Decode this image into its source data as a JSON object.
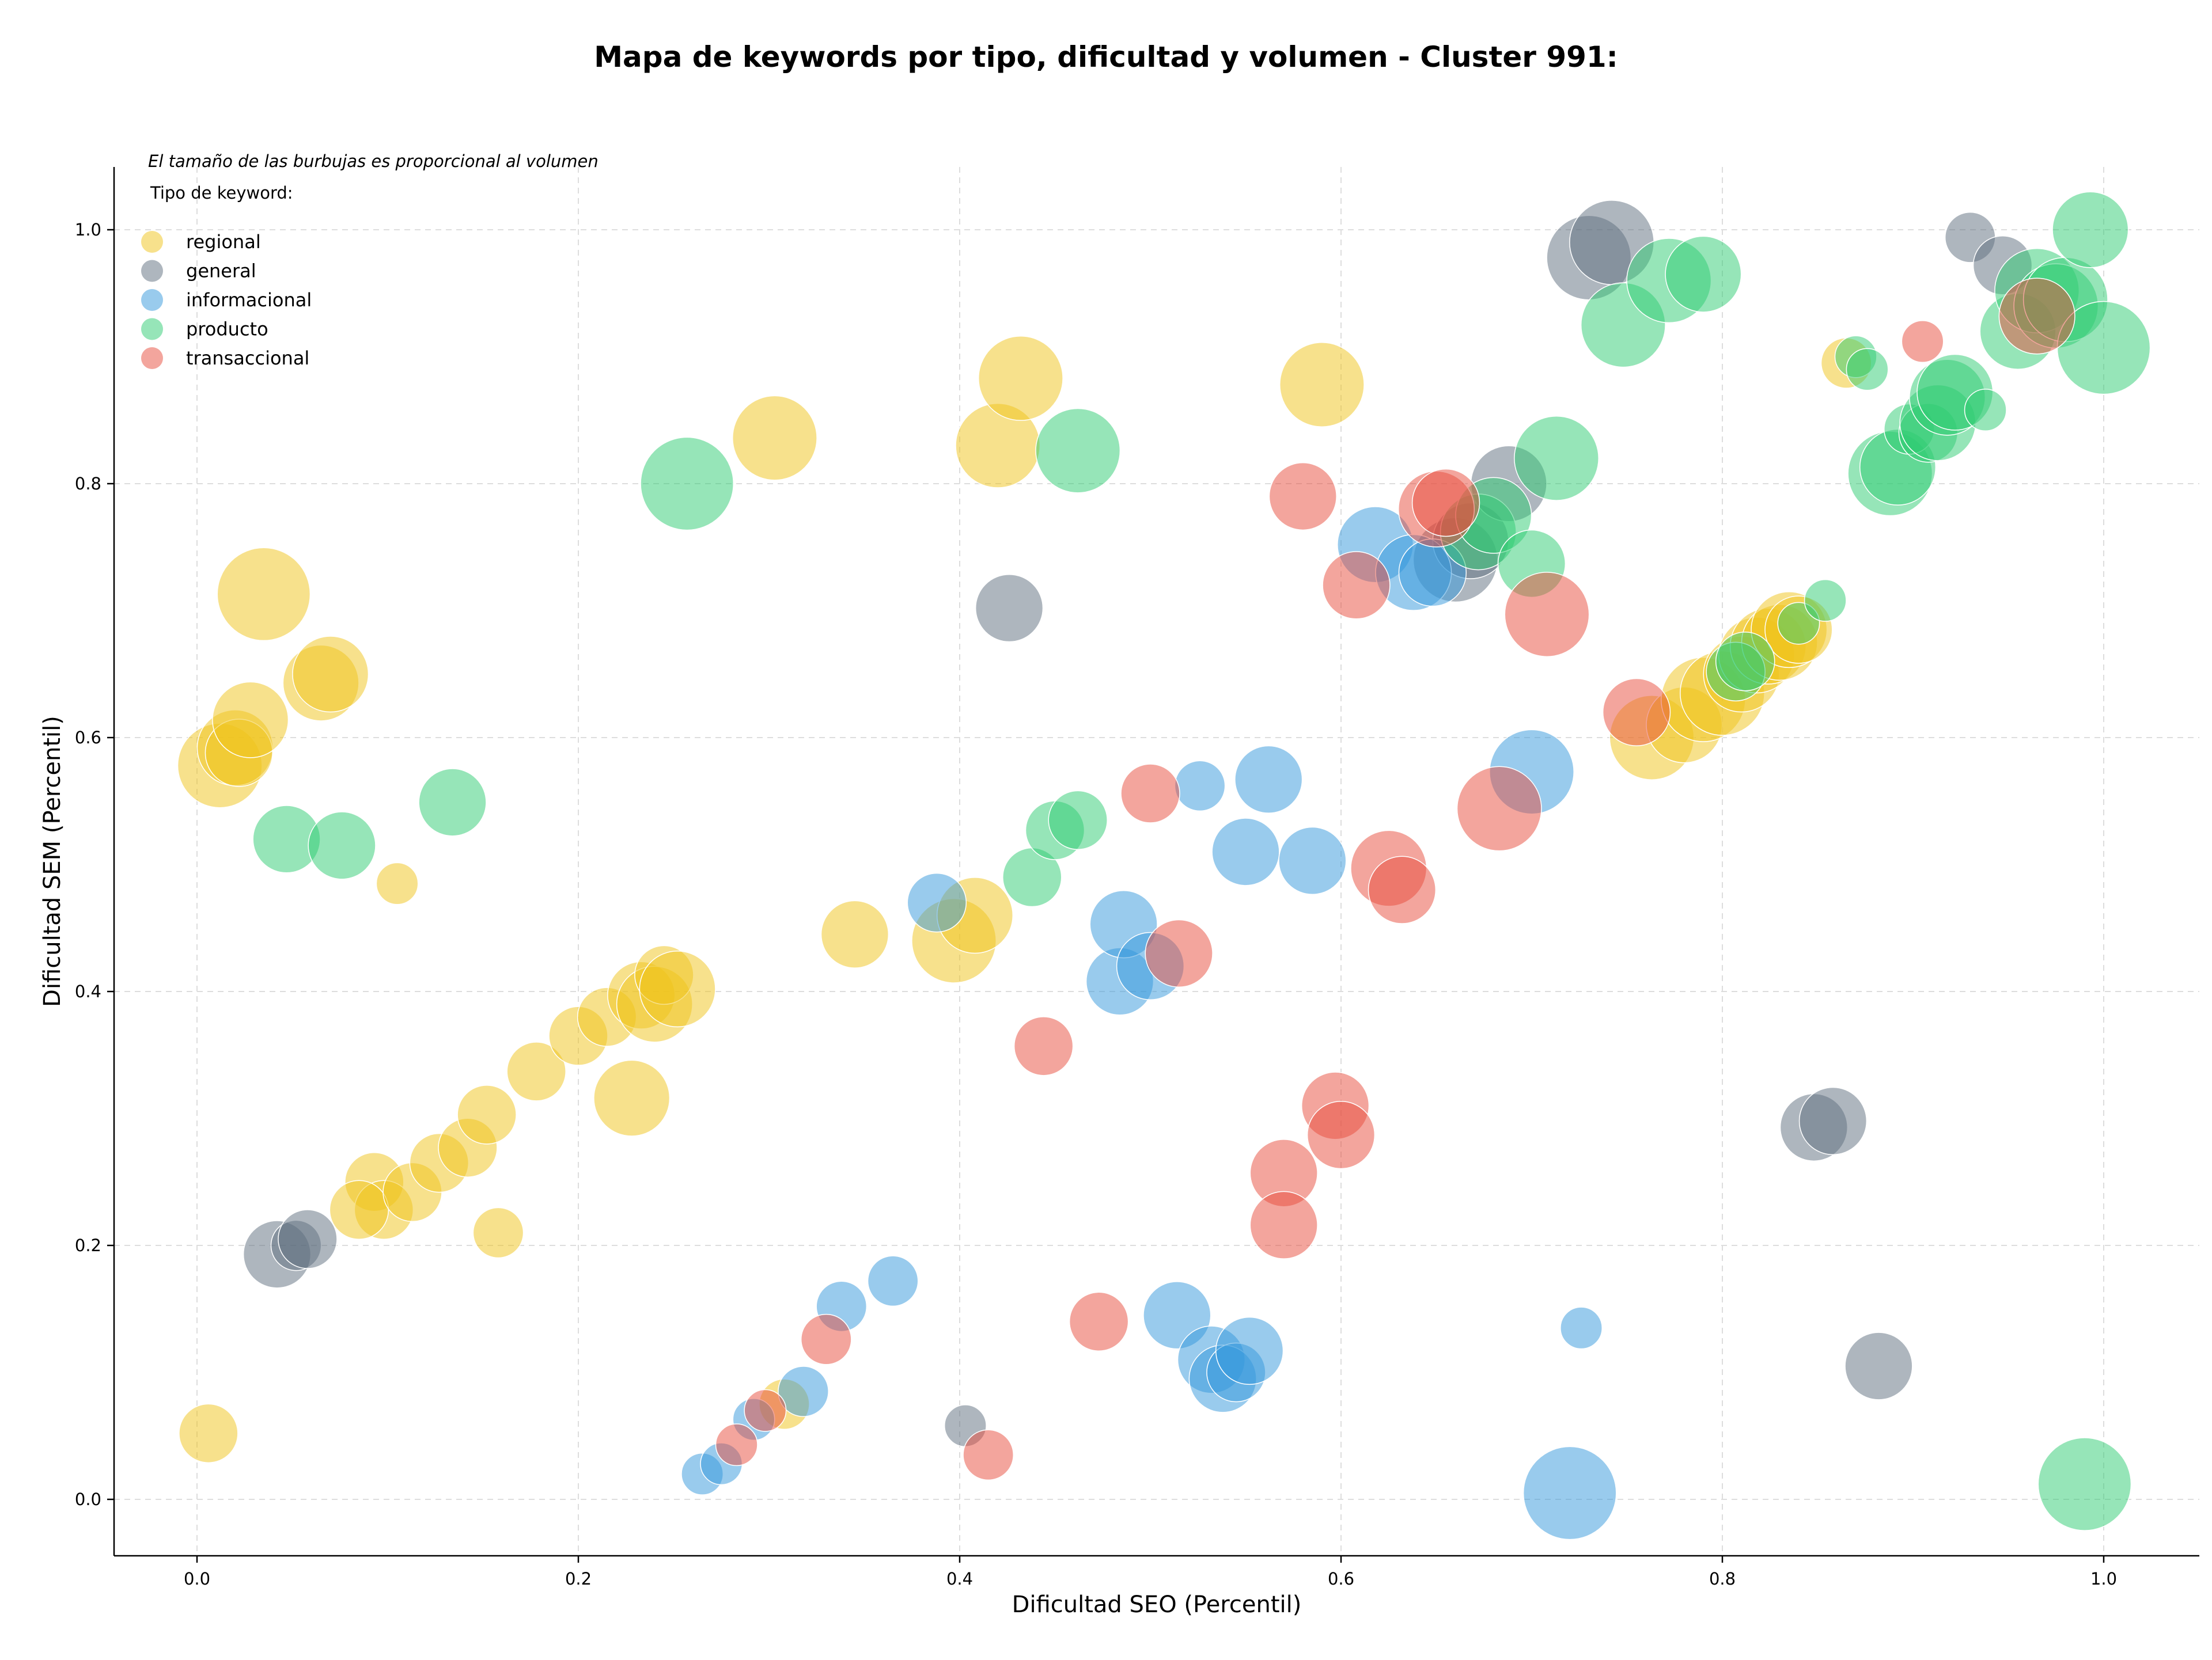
{
  "chart_data": {
    "type": "scatter",
    "title": "Mapa de keywords por tipo, dificultad y volumen - Cluster 991:",
    "xlabel": "Dificultad SEO (Percentil)",
    "ylabel": "Dificultad SEM (Percentil)",
    "xlim": [
      -0.04,
      1.05
    ],
    "ylim": [
      -0.04,
      1.05
    ],
    "xticks": [
      "0.0",
      "0.2",
      "0.4",
      "0.6",
      "0.8",
      "1.0"
    ],
    "yticks": [
      "0.0",
      "0.2",
      "0.4",
      "0.6",
      "0.8",
      "1.0"
    ],
    "grid": true,
    "legend_placement": "top-left",
    "legend_note": "El tamaño de las burbujas es proporcional al volumen",
    "legend_title": "Tipo de keyword:",
    "series": [
      {
        "name": "regional",
        "color": "#f0c419",
        "points": [
          [
            0.006,
            0.052,
            5
          ],
          [
            0.012,
            0.578,
            8
          ],
          [
            0.02,
            0.592,
            7
          ],
          [
            0.022,
            0.588,
            6
          ],
          [
            0.028,
            0.614,
            7
          ],
          [
            0.035,
            0.713,
            9
          ],
          [
            0.065,
            0.643,
            7
          ],
          [
            0.07,
            0.65,
            7
          ],
          [
            0.093,
            0.25,
            5
          ],
          [
            0.098,
            0.228,
            5
          ],
          [
            0.105,
            0.485,
            3
          ],
          [
            0.085,
            0.228,
            5
          ],
          [
            0.113,
            0.242,
            5
          ],
          [
            0.127,
            0.265,
            5
          ],
          [
            0.142,
            0.277,
            5
          ],
          [
            0.152,
            0.303,
            5
          ],
          [
            0.158,
            0.21,
            4
          ],
          [
            0.178,
            0.337,
            5
          ],
          [
            0.2,
            0.365,
            5
          ],
          [
            0.215,
            0.38,
            5
          ],
          [
            0.228,
            0.316,
            7
          ],
          [
            0.233,
            0.397,
            6
          ],
          [
            0.24,
            0.39,
            7
          ],
          [
            0.245,
            0.413,
            5
          ],
          [
            0.252,
            0.402,
            7
          ],
          [
            0.303,
            0.836,
            8
          ],
          [
            0.308,
            0.075,
            4
          ],
          [
            0.345,
            0.445,
            6
          ],
          [
            0.397,
            0.44,
            8
          ],
          [
            0.408,
            0.46,
            7
          ],
          [
            0.42,
            0.83,
            8
          ],
          [
            0.432,
            0.883,
            8
          ],
          [
            0.59,
            0.878,
            8
          ],
          [
            0.763,
            0.6,
            8
          ],
          [
            0.78,
            0.61,
            7
          ],
          [
            0.79,
            0.63,
            8
          ],
          [
            0.8,
            0.635,
            8
          ],
          [
            0.81,
            0.65,
            7
          ],
          [
            0.818,
            0.665,
            7
          ],
          [
            0.824,
            0.672,
            7
          ],
          [
            0.83,
            0.675,
            7
          ],
          [
            0.835,
            0.685,
            7
          ],
          [
            0.84,
            0.685,
            6
          ],
          [
            0.865,
            0.895,
            4
          ]
        ]
      },
      {
        "name": "general",
        "color": "#5d6d7e",
        "points": [
          [
            0.042,
            0.193,
            6
          ],
          [
            0.052,
            0.2,
            4
          ],
          [
            0.058,
            0.205,
            5
          ],
          [
            0.403,
            0.058,
            3
          ],
          [
            0.426,
            0.702,
            6
          ],
          [
            0.66,
            0.74,
            8
          ],
          [
            0.668,
            0.755,
            7
          ],
          [
            0.688,
            0.8,
            7
          ],
          [
            0.73,
            0.978,
            8
          ],
          [
            0.742,
            0.99,
            8
          ],
          [
            0.848,
            0.293,
            6
          ],
          [
            0.858,
            0.298,
            6
          ],
          [
            0.882,
            0.105,
            6
          ],
          [
            0.93,
            0.994,
            4
          ],
          [
            0.947,
            0.972,
            5
          ]
        ]
      },
      {
        "name": "informacional",
        "color": "#3498db",
        "points": [
          [
            0.265,
            0.02,
            3
          ],
          [
            0.275,
            0.028,
            3
          ],
          [
            0.292,
            0.063,
            3
          ],
          [
            0.318,
            0.085,
            4
          ],
          [
            0.338,
            0.152,
            4
          ],
          [
            0.365,
            0.172,
            4
          ],
          [
            0.388,
            0.47,
            5
          ],
          [
            0.484,
            0.408,
            6
          ],
          [
            0.486,
            0.453,
            6
          ],
          [
            0.5,
            0.42,
            6
          ],
          [
            0.514,
            0.145,
            6
          ],
          [
            0.526,
            0.562,
            4
          ],
          [
            0.532,
            0.11,
            6
          ],
          [
            0.538,
            0.095,
            6
          ],
          [
            0.545,
            0.1,
            5
          ],
          [
            0.552,
            0.117,
            6
          ],
          [
            0.55,
            0.51,
            6
          ],
          [
            0.562,
            0.567,
            6
          ],
          [
            0.585,
            0.503,
            6
          ],
          [
            0.618,
            0.752,
            7
          ],
          [
            0.638,
            0.73,
            7
          ],
          [
            0.648,
            0.73,
            6
          ],
          [
            0.7,
            0.573,
            8
          ],
          [
            0.72,
            0.005,
            9
          ],
          [
            0.726,
            0.135,
            3
          ]
        ]
      },
      {
        "name": "producto",
        "color": "#2ecc71",
        "points": [
          [
            0.047,
            0.52,
            6
          ],
          [
            0.076,
            0.515,
            6
          ],
          [
            0.134,
            0.549,
            6
          ],
          [
            0.257,
            0.8,
            9
          ],
          [
            0.438,
            0.49,
            5
          ],
          [
            0.45,
            0.527,
            5
          ],
          [
            0.462,
            0.535,
            5
          ],
          [
            0.462,
            0.826,
            8
          ],
          [
            0.672,
            0.762,
            7
          ],
          [
            0.68,
            0.775,
            7
          ],
          [
            0.7,
            0.737,
            6
          ],
          [
            0.713,
            0.82,
            8
          ],
          [
            0.748,
            0.925,
            8
          ],
          [
            0.772,
            0.96,
            8
          ],
          [
            0.79,
            0.965,
            7
          ],
          [
            0.807,
            0.652,
            5
          ],
          [
            0.812,
            0.66,
            5
          ],
          [
            0.84,
            0.69,
            3
          ],
          [
            0.854,
            0.708,
            3
          ],
          [
            0.87,
            0.9,
            3
          ],
          [
            0.876,
            0.89,
            3
          ],
          [
            0.888,
            0.808,
            8
          ],
          [
            0.892,
            0.813,
            7
          ],
          [
            0.898,
            0.843,
            4
          ],
          [
            0.908,
            0.84,
            5
          ],
          [
            0.913,
            0.848,
            7
          ],
          [
            0.918,
            0.868,
            7
          ],
          [
            0.922,
            0.872,
            7
          ],
          [
            0.938,
            0.858,
            3
          ],
          [
            0.955,
            0.92,
            7
          ],
          [
            0.965,
            0.952,
            8
          ],
          [
            0.975,
            0.94,
            8
          ],
          [
            0.98,
            0.945,
            8
          ],
          [
            0.99,
            0.012,
            9
          ],
          [
            0.993,
            1.0,
            7
          ],
          [
            1.0,
            0.907,
            9
          ]
        ]
      },
      {
        "name": "transaccional",
        "color": "#e74c3c",
        "points": [
          [
            0.283,
            0.043,
            3
          ],
          [
            0.298,
            0.07,
            3
          ],
          [
            0.33,
            0.126,
            4
          ],
          [
            0.415,
            0.035,
            4
          ],
          [
            0.444,
            0.357,
            5
          ],
          [
            0.473,
            0.14,
            5
          ],
          [
            0.5,
            0.556,
            5
          ],
          [
            0.515,
            0.43,
            6
          ],
          [
            0.57,
            0.257,
            6
          ],
          [
            0.57,
            0.216,
            6
          ],
          [
            0.58,
            0.79,
            6
          ],
          [
            0.597,
            0.31,
            6
          ],
          [
            0.6,
            0.287,
            6
          ],
          [
            0.608,
            0.72,
            6
          ],
          [
            0.625,
            0.497,
            7
          ],
          [
            0.632,
            0.48,
            6
          ],
          [
            0.65,
            0.78,
            7
          ],
          [
            0.655,
            0.785,
            6
          ],
          [
            0.683,
            0.544,
            8
          ],
          [
            0.708,
            0.697,
            8
          ],
          [
            0.755,
            0.62,
            6
          ],
          [
            0.905,
            0.912,
            3
          ],
          [
            0.965,
            0.932,
            7
          ]
        ]
      }
    ]
  }
}
